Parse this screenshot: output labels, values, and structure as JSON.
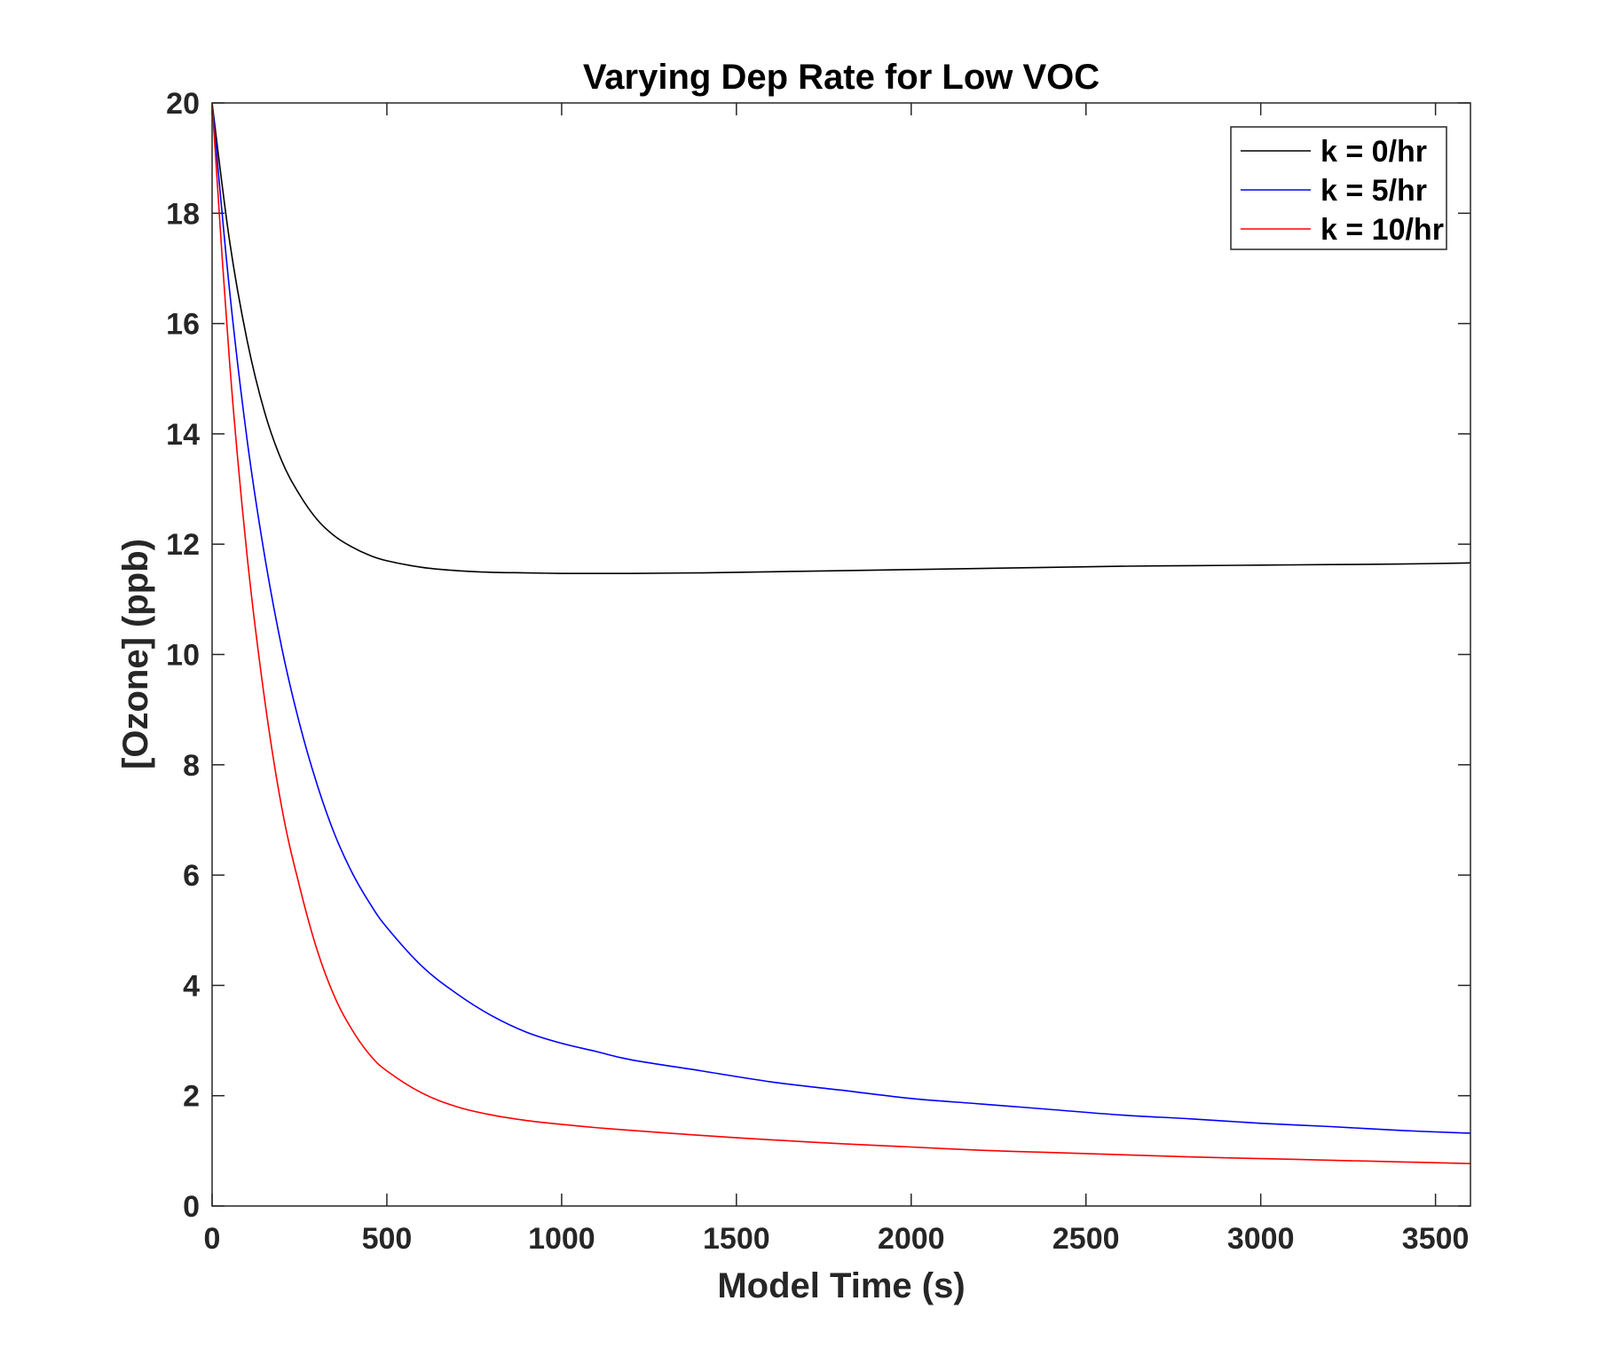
{
  "chart_data": {
    "type": "line",
    "title": "Varying Dep Rate for Low VOC",
    "xlabel": "Model Time (s)",
    "ylabel": "[Ozone] (ppb)",
    "xlim": [
      0,
      3600
    ],
    "ylim": [
      0,
      20
    ],
    "xticks": [
      0,
      500,
      1000,
      1500,
      2000,
      2500,
      3000,
      3500
    ],
    "yticks": [
      0,
      2,
      4,
      6,
      8,
      10,
      12,
      14,
      16,
      18,
      20
    ],
    "grid": false,
    "legend_position": "top-right",
    "x": [
      0,
      50,
      100,
      150,
      200,
      250,
      300,
      350,
      400,
      450,
      500,
      600,
      700,
      800,
      900,
      1000,
      1100,
      1200,
      1400,
      1600,
      1800,
      2000,
      2200,
      2400,
      2600,
      2800,
      3000,
      3200,
      3400,
      3600
    ],
    "series": [
      {
        "name": "k = 0/hr",
        "color": "#000000",
        "values": [
          20.0,
          17.5,
          15.7,
          14.4,
          13.5,
          12.9,
          12.45,
          12.15,
          11.95,
          11.8,
          11.7,
          11.58,
          11.52,
          11.49,
          11.48,
          11.47,
          11.47,
          11.47,
          11.48,
          11.5,
          11.52,
          11.54,
          11.56,
          11.58,
          11.6,
          11.61,
          11.62,
          11.63,
          11.64,
          11.66
        ]
      },
      {
        "name": "k = 5/hr",
        "color": "#0000ff",
        "values": [
          20.0,
          16.6,
          13.9,
          11.8,
          10.1,
          8.75,
          7.65,
          6.75,
          6.05,
          5.5,
          5.05,
          4.35,
          3.85,
          3.45,
          3.15,
          2.95,
          2.8,
          2.65,
          2.45,
          2.25,
          2.1,
          1.95,
          1.85,
          1.75,
          1.65,
          1.58,
          1.5,
          1.44,
          1.37,
          1.32
        ]
      },
      {
        "name": "k = 10/hr",
        "color": "#ff0000",
        "values": [
          20.0,
          15.3,
          11.8,
          9.2,
          7.2,
          5.8,
          4.65,
          3.8,
          3.2,
          2.75,
          2.45,
          2.05,
          1.8,
          1.65,
          1.55,
          1.48,
          1.42,
          1.37,
          1.28,
          1.2,
          1.13,
          1.07,
          1.01,
          0.97,
          0.93,
          0.89,
          0.86,
          0.83,
          0.8,
          0.77
        ]
      }
    ]
  }
}
